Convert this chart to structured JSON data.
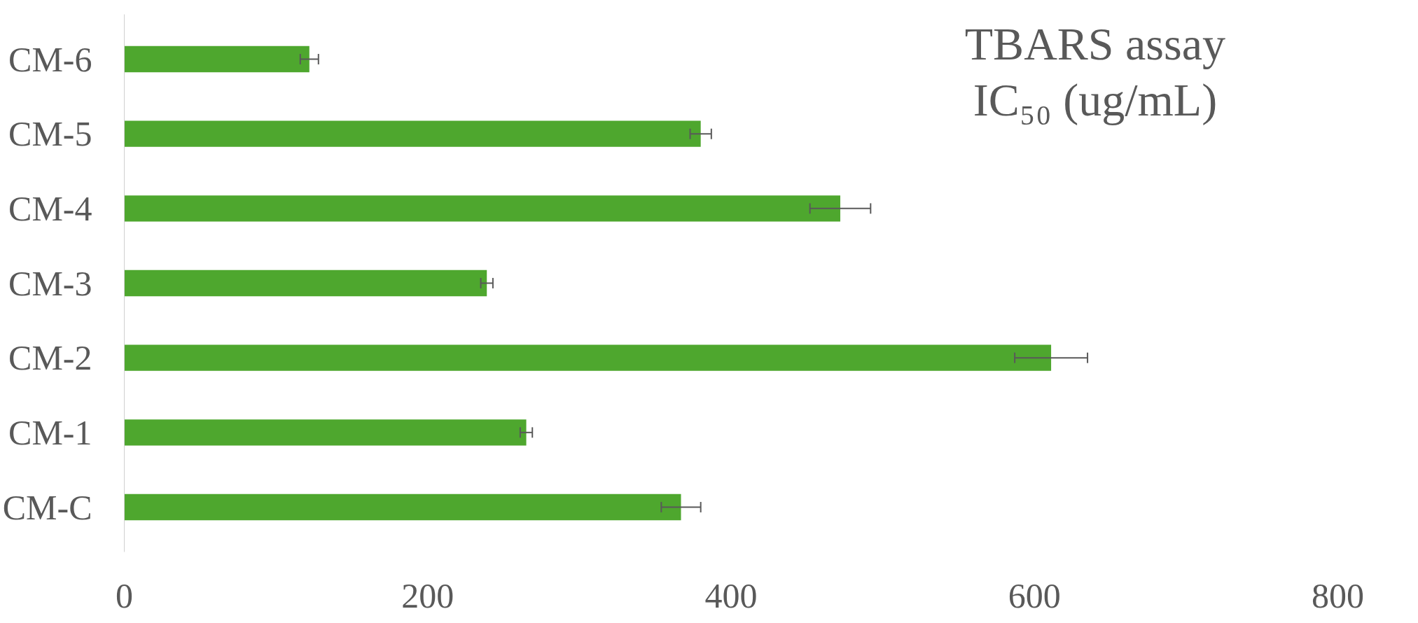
{
  "chart_data": {
    "type": "bar",
    "orientation": "horizontal",
    "title": "TBARS assay\nIC₅₀ (ug/mL)",
    "categories": [
      "CM-6",
      "CM-5",
      "CM-4",
      "CM-3",
      "CM-2",
      "CM-1",
      "CM-C"
    ],
    "values": [
      122,
      380,
      472,
      239,
      611,
      265,
      367
    ],
    "errors": [
      6,
      7,
      20,
      4,
      24,
      4,
      13
    ],
    "color": "#4ea72e",
    "xlim": [
      0,
      800
    ],
    "xticks": [
      0,
      200,
      400,
      600,
      800
    ],
    "grid": false
  }
}
